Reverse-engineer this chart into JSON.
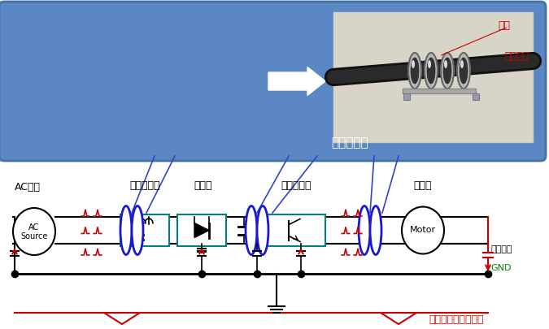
{
  "top_box_color": "#5b87c5",
  "top_box_text": "取り付け例",
  "core_label": "コア",
  "cable_label": "ケーブル",
  "ac_source_label": "AC電源",
  "filter_label": "フィルター",
  "rectifier_label": "整流器",
  "inverter_label": "インバータ",
  "motor_label": "モータ",
  "parasitic_label": "寄生容量",
  "gnd_label": "GND",
  "noise_label": "コモンモードノイズ",
  "top_box_color_edge": "#4472a0",
  "circuit_bg": "#ffffff",
  "black": "#000000",
  "red": "#cc0000",
  "blue_core": "#1a1acc",
  "teal": "#008080",
  "green_gnd": "#008000"
}
